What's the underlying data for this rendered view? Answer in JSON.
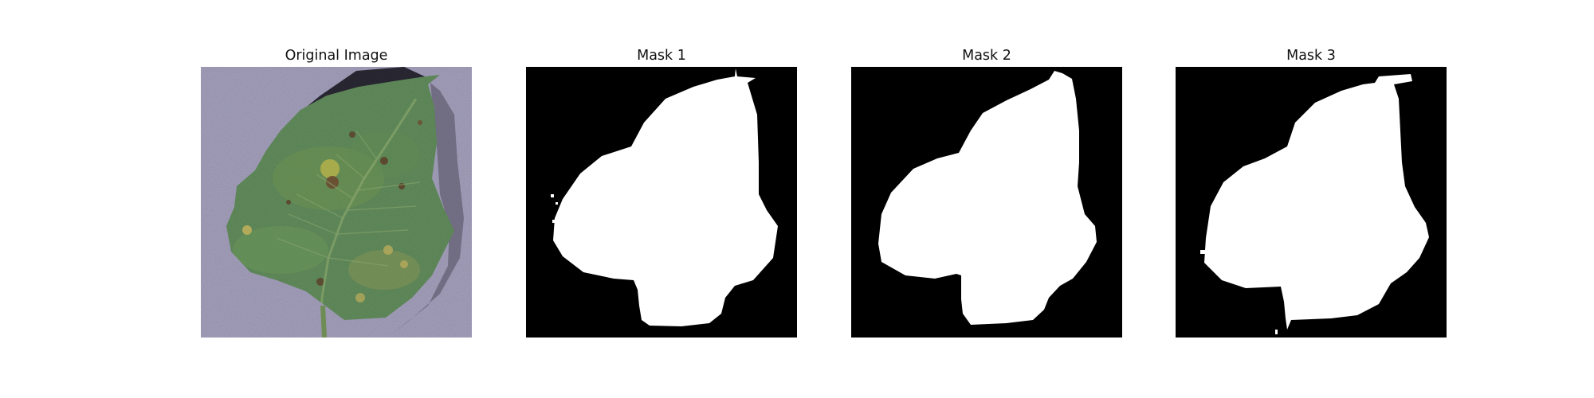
{
  "figure": {
    "panels": [
      {
        "id": "original",
        "title": "Original Image",
        "kind": "photo"
      },
      {
        "id": "mask-1",
        "title": "Mask 1",
        "kind": "mask"
      },
      {
        "id": "mask-2",
        "title": "Mask 2",
        "kind": "mask"
      },
      {
        "id": "mask-3",
        "title": "Mask 3",
        "kind": "mask"
      }
    ],
    "colors": {
      "background": "#ffffff",
      "mask_background": "#000000",
      "mask_foreground": "#ffffff",
      "leaf_green": "#4f7a4a",
      "backdrop_lavender": "#8e8aa6",
      "lesion_yellow": "#b3b04a"
    }
  }
}
